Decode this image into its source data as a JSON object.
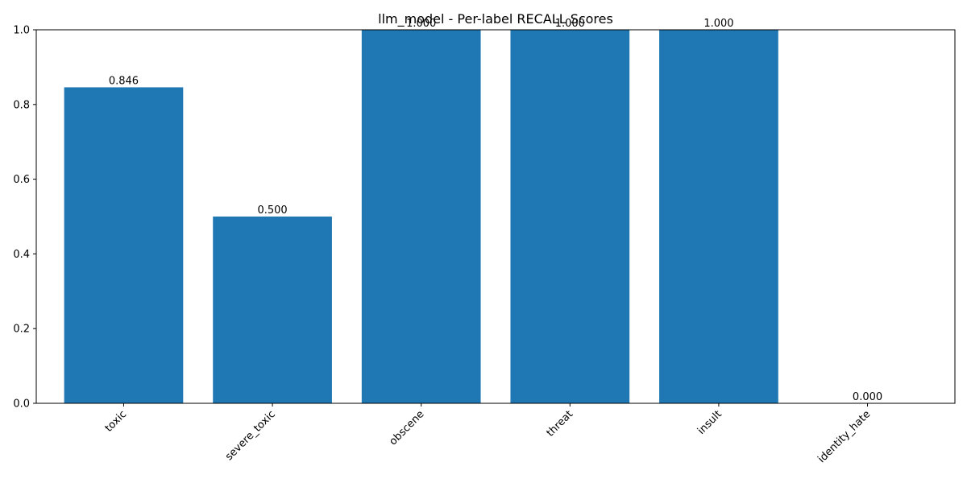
{
  "chart_data": {
    "type": "bar",
    "title": "llm_model - Per-label RECALL Scores",
    "xlabel": "",
    "ylabel": "",
    "categories": [
      "toxic",
      "severe_toxic",
      "obscene",
      "threat",
      "insult",
      "identity_hate"
    ],
    "values": [
      0.846,
      0.5,
      1.0,
      1.0,
      1.0,
      0.0
    ],
    "data_labels": [
      "0.846",
      "0.500",
      "1.000",
      "1.000",
      "1.000",
      "0.000"
    ],
    "ylim": [
      0,
      1
    ],
    "yticks": [
      0,
      0.2,
      0.4,
      0.6,
      0.8,
      1.0
    ],
    "ytick_labels": [
      "0.0",
      "0.2",
      "0.4",
      "0.6",
      "0.8",
      "1.0"
    ],
    "x_tick_rotation_deg": 45,
    "grid": false,
    "bar_color": "#1f77b4"
  }
}
